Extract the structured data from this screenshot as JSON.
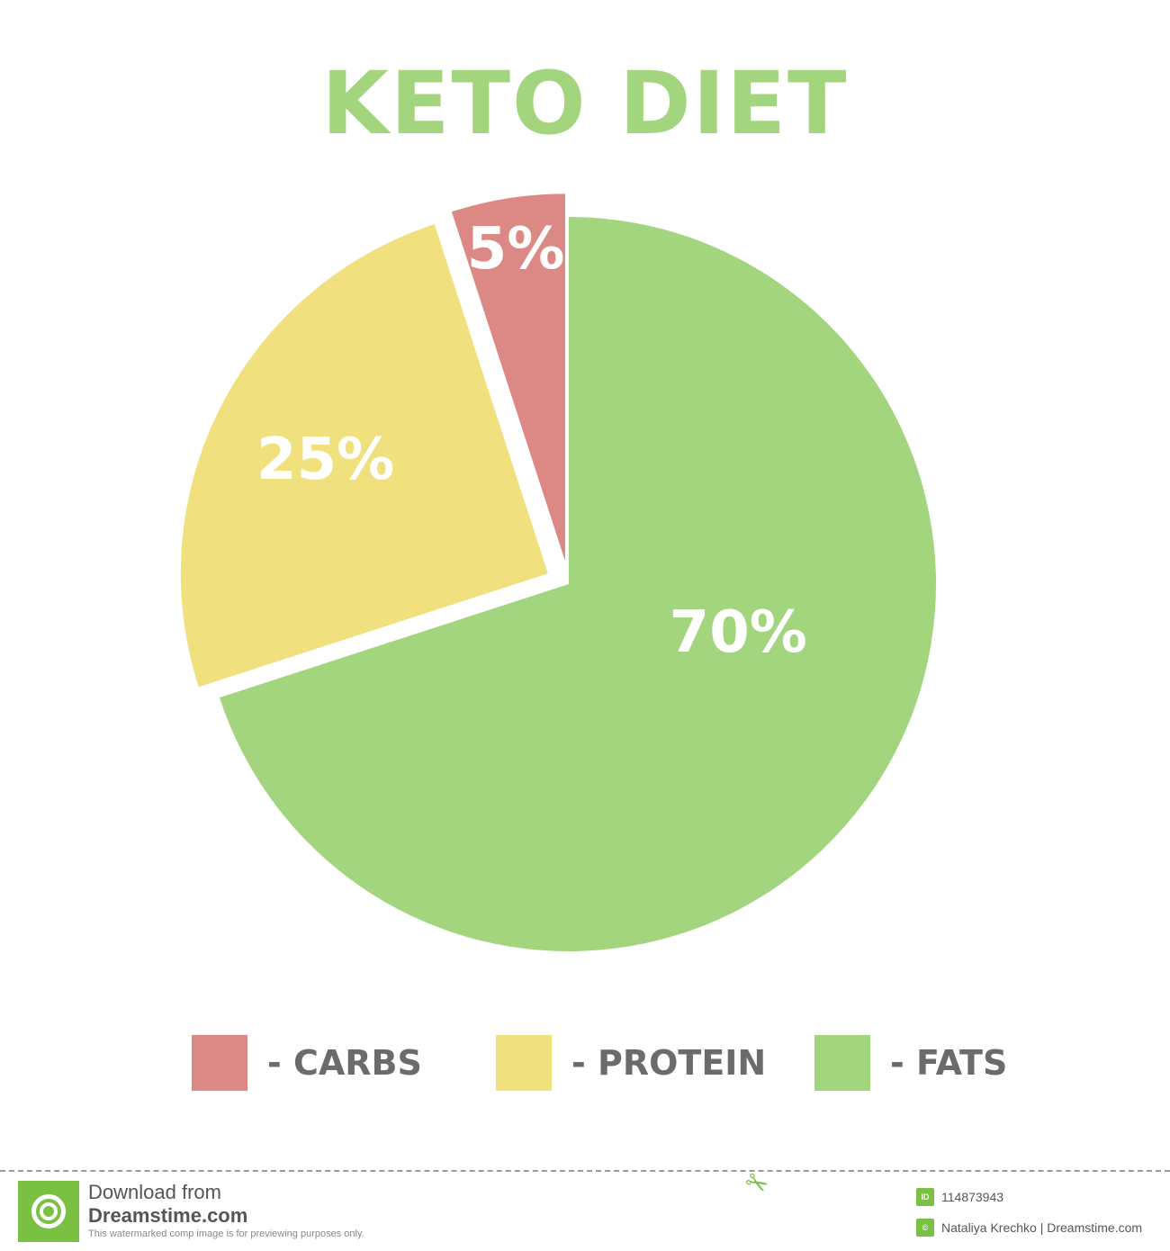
{
  "chart_data": {
    "type": "pie",
    "title": "KETO DIET",
    "title_color": "#a3d57e",
    "slices": [
      {
        "label": "CARBS",
        "value": 5,
        "display": "5%",
        "color": "#dc8985",
        "exploded": true
      },
      {
        "label": "PROTEIN",
        "value": 25,
        "display": "25%",
        "color": "#f1e07e",
        "exploded": true
      },
      {
        "label": "FATS",
        "value": 70,
        "display": "70%",
        "color": "#a3d57e",
        "exploded": false
      }
    ],
    "legend": [
      {
        "text": "- CARBS",
        "color": "#dc8985"
      },
      {
        "text": "- PROTEIN",
        "color": "#f1e07e"
      },
      {
        "text": "- FATS",
        "color": "#a3d57e"
      }
    ],
    "legend_placement": "bottom"
  },
  "footer": {
    "line1": "Download from",
    "line2": "Dreamstime.com",
    "line3": "This watermarked comp image is for previewing purposes only.",
    "id_badge": "ID",
    "id": "114873943",
    "author": "Nataliya Krechko | Dreamstime.com",
    "brand_color": "#79c043"
  }
}
